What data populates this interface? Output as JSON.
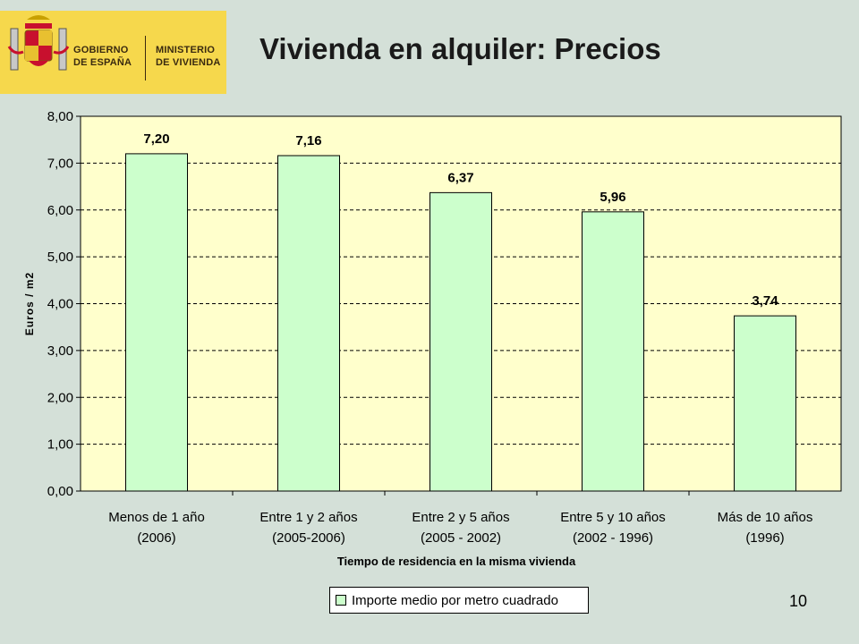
{
  "header": {
    "logo_line1_left": "GOBIERNO",
    "logo_line2_left": "DE ESPAÑA",
    "logo_line1_right": "MINISTERIO",
    "logo_line2_right": "DE VIVIENDA",
    "title": "Vivienda en alquiler: Precios"
  },
  "page_number": "10",
  "chart_data": {
    "type": "bar",
    "title": "",
    "xlabel": "Tiempo de residencia en la misma vivienda",
    "ylabel": "Euros / m2",
    "ylim": [
      0,
      8
    ],
    "yticks": [
      "0,00",
      "1,00",
      "2,00",
      "3,00",
      "4,00",
      "5,00",
      "6,00",
      "7,00",
      "8,00"
    ],
    "categories": [
      [
        "Menos de 1 año",
        "(2006)"
      ],
      [
        "Entre 1 y 2 años",
        "(2005-2006)"
      ],
      [
        "Entre 2 y 5 años",
        "(2005 - 2002)"
      ],
      [
        "Entre 5 y 10 años",
        "(2002 - 1996)"
      ],
      [
        "Más de 10 años",
        "(1996)"
      ]
    ],
    "series": [
      {
        "name": "Importe medio por metro cuadrado",
        "values": [
          7.2,
          7.16,
          6.37,
          5.96,
          3.74
        ],
        "labels": [
          "7,20",
          "7,16",
          "6,37",
          "5,96",
          "3,74"
        ],
        "color": "#ccffcc"
      }
    ],
    "plot_background": "#ffffcc",
    "grid": true,
    "legend_position": "bottom"
  }
}
